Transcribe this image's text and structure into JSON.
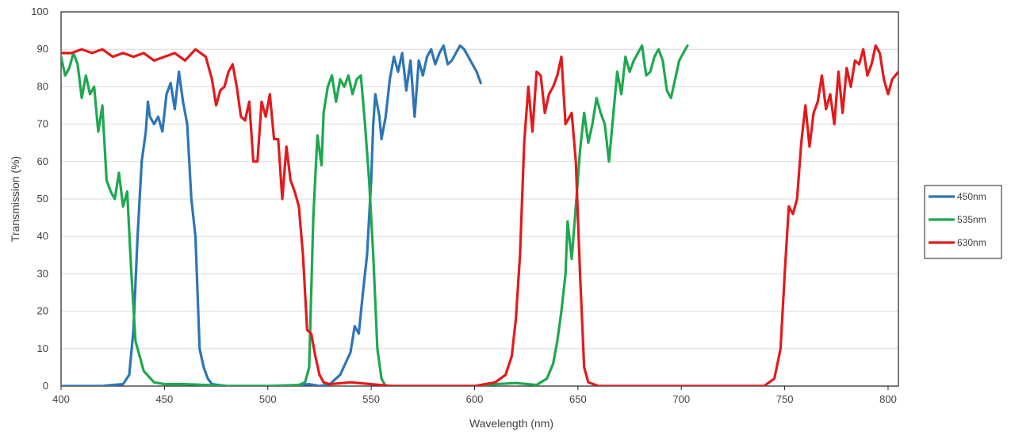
{
  "chart_data": {
    "type": "line",
    "title": "",
    "xlabel": "Wavelength (nm)",
    "ylabel": "Transmission (%)",
    "xlim": [
      400,
      805
    ],
    "ylim": [
      0,
      100
    ],
    "x_ticks": [
      400,
      450,
      500,
      550,
      600,
      650,
      700,
      750,
      800
    ],
    "y_ticks": [
      0,
      10,
      20,
      30,
      40,
      50,
      60,
      70,
      80,
      90,
      100
    ],
    "grid": "horizontal",
    "legend_position": "right",
    "series": [
      {
        "name": "450nm",
        "color": "#2e75b6",
        "points": [
          [
            400,
            0
          ],
          [
            420,
            0
          ],
          [
            425,
            0.3
          ],
          [
            430,
            0.5
          ],
          [
            433,
            3
          ],
          [
            435,
            15
          ],
          [
            437,
            40
          ],
          [
            439,
            60
          ],
          [
            441,
            68
          ],
          [
            442,
            76
          ],
          [
            443,
            72
          ],
          [
            445,
            70
          ],
          [
            447,
            72
          ],
          [
            449,
            68
          ],
          [
            451,
            78
          ],
          [
            453,
            81
          ],
          [
            455,
            74
          ],
          [
            457,
            84
          ],
          [
            459,
            76
          ],
          [
            461,
            70
          ],
          [
            463,
            50
          ],
          [
            465,
            40
          ],
          [
            467,
            10
          ],
          [
            469,
            5
          ],
          [
            471,
            2
          ],
          [
            473,
            0.5
          ],
          [
            480,
            0
          ],
          [
            510,
            0
          ],
          [
            520,
            0.5
          ],
          [
            525,
            0
          ],
          [
            530,
            0.5
          ],
          [
            535,
            3
          ],
          [
            540,
            9
          ],
          [
            542,
            16
          ],
          [
            544,
            14
          ],
          [
            546,
            25
          ],
          [
            548,
            35
          ],
          [
            550,
            55
          ],
          [
            551,
            70
          ],
          [
            552,
            78
          ],
          [
            554,
            72
          ],
          [
            555,
            66
          ],
          [
            557,
            72
          ],
          [
            559,
            82
          ],
          [
            561,
            88
          ],
          [
            563,
            84
          ],
          [
            565,
            89
          ],
          [
            567,
            79
          ],
          [
            569,
            87
          ],
          [
            571,
            72
          ],
          [
            573,
            87
          ],
          [
            575,
            83
          ],
          [
            577,
            88
          ],
          [
            579,
            90
          ],
          [
            581,
            86
          ],
          [
            583,
            89
          ],
          [
            585,
            91
          ],
          [
            587,
            86
          ],
          [
            589,
            87
          ],
          [
            591,
            89
          ],
          [
            593,
            91
          ],
          [
            595,
            90
          ],
          [
            597,
            88
          ],
          [
            599,
            86
          ],
          [
            601,
            84
          ],
          [
            603,
            81
          ]
        ]
      },
      {
        "name": "535nm",
        "color": "#1fa84f",
        "points": [
          [
            400,
            88
          ],
          [
            402,
            83
          ],
          [
            404,
            85
          ],
          [
            406,
            89
          ],
          [
            408,
            86
          ],
          [
            410,
            77
          ],
          [
            412,
            83
          ],
          [
            414,
            78
          ],
          [
            416,
            80
          ],
          [
            418,
            68
          ],
          [
            420,
            75
          ],
          [
            422,
            55
          ],
          [
            424,
            52
          ],
          [
            426,
            50
          ],
          [
            428,
            57
          ],
          [
            430,
            48
          ],
          [
            432,
            52
          ],
          [
            434,
            30
          ],
          [
            436,
            12
          ],
          [
            438,
            8
          ],
          [
            440,
            4
          ],
          [
            445,
            1
          ],
          [
            450,
            0.5
          ],
          [
            460,
            0.5
          ],
          [
            470,
            0.3
          ],
          [
            480,
            0
          ],
          [
            500,
            0
          ],
          [
            515,
            0.3
          ],
          [
            518,
            1
          ],
          [
            520,
            5
          ],
          [
            522,
            45
          ],
          [
            524,
            67
          ],
          [
            526,
            59
          ],
          [
            527,
            73
          ],
          [
            529,
            80
          ],
          [
            531,
            83
          ],
          [
            533,
            76
          ],
          [
            535,
            82
          ],
          [
            537,
            80
          ],
          [
            539,
            83
          ],
          [
            541,
            78
          ],
          [
            543,
            82
          ],
          [
            545,
            83
          ],
          [
            547,
            70
          ],
          [
            549,
            55
          ],
          [
            551,
            35
          ],
          [
            553,
            10
          ],
          [
            555,
            2
          ],
          [
            557,
            0
          ],
          [
            600,
            0
          ],
          [
            610,
            0.5
          ],
          [
            620,
            0.8
          ],
          [
            630,
            0.3
          ],
          [
            635,
            2
          ],
          [
            638,
            6
          ],
          [
            640,
            12
          ],
          [
            642,
            20
          ],
          [
            644,
            30
          ],
          [
            645,
            44
          ],
          [
            647,
            34
          ],
          [
            649,
            48
          ],
          [
            651,
            63
          ],
          [
            653,
            73
          ],
          [
            655,
            65
          ],
          [
            657,
            70
          ],
          [
            659,
            77
          ],
          [
            661,
            73
          ],
          [
            663,
            70
          ],
          [
            665,
            60
          ],
          [
            667,
            72
          ],
          [
            669,
            84
          ],
          [
            671,
            78
          ],
          [
            673,
            88
          ],
          [
            675,
            84
          ],
          [
            677,
            87
          ],
          [
            679,
            89
          ],
          [
            681,
            91
          ],
          [
            683,
            83
          ],
          [
            685,
            84
          ],
          [
            687,
            88
          ],
          [
            689,
            90
          ],
          [
            691,
            87
          ],
          [
            693,
            79
          ],
          [
            695,
            77
          ],
          [
            697,
            82
          ],
          [
            699,
            87
          ],
          [
            701,
            89
          ],
          [
            703,
            91
          ]
        ]
      },
      {
        "name": "630nm",
        "color": "#e31a1c",
        "points": [
          [
            400,
            89
          ],
          [
            405,
            89
          ],
          [
            410,
            90
          ],
          [
            415,
            89
          ],
          [
            420,
            90
          ],
          [
            425,
            88
          ],
          [
            430,
            89
          ],
          [
            435,
            88
          ],
          [
            440,
            89
          ],
          [
            445,
            87
          ],
          [
            450,
            88
          ],
          [
            455,
            89
          ],
          [
            460,
            87
          ],
          [
            465,
            90
          ],
          [
            470,
            88
          ],
          [
            473,
            82
          ],
          [
            475,
            75
          ],
          [
            477,
            79
          ],
          [
            479,
            80
          ],
          [
            481,
            84
          ],
          [
            483,
            86
          ],
          [
            485,
            80
          ],
          [
            487,
            72
          ],
          [
            489,
            71
          ],
          [
            491,
            76
          ],
          [
            493,
            60
          ],
          [
            495,
            60
          ],
          [
            497,
            76
          ],
          [
            499,
            72
          ],
          [
            501,
            78
          ],
          [
            503,
            66
          ],
          [
            505,
            66
          ],
          [
            507,
            50
          ],
          [
            509,
            64
          ],
          [
            511,
            55
          ],
          [
            513,
            52
          ],
          [
            515,
            48
          ],
          [
            517,
            35
          ],
          [
            519,
            15
          ],
          [
            521,
            14
          ],
          [
            523,
            8
          ],
          [
            525,
            3
          ],
          [
            527,
            1
          ],
          [
            530,
            0.5
          ],
          [
            540,
            1
          ],
          [
            550,
            0.5
          ],
          [
            560,
            0
          ],
          [
            600,
            0
          ],
          [
            610,
            1
          ],
          [
            615,
            3
          ],
          [
            618,
            8
          ],
          [
            620,
            18
          ],
          [
            622,
            35
          ],
          [
            624,
            65
          ],
          [
            626,
            80
          ],
          [
            628,
            68
          ],
          [
            630,
            84
          ],
          [
            632,
            83
          ],
          [
            634,
            73
          ],
          [
            636,
            78
          ],
          [
            638,
            80
          ],
          [
            640,
            83
          ],
          [
            642,
            88
          ],
          [
            644,
            70
          ],
          [
            646,
            72
          ],
          [
            647,
            73
          ],
          [
            649,
            60
          ],
          [
            651,
            30
          ],
          [
            653,
            5
          ],
          [
            655,
            1
          ],
          [
            660,
            0
          ],
          [
            740,
            0
          ],
          [
            745,
            2
          ],
          [
            748,
            10
          ],
          [
            750,
            30
          ],
          [
            752,
            48
          ],
          [
            754,
            46
          ],
          [
            756,
            50
          ],
          [
            758,
            65
          ],
          [
            760,
            75
          ],
          [
            762,
            64
          ],
          [
            764,
            73
          ],
          [
            766,
            76
          ],
          [
            768,
            83
          ],
          [
            770,
            74
          ],
          [
            772,
            78
          ],
          [
            774,
            70
          ],
          [
            776,
            84
          ],
          [
            778,
            73
          ],
          [
            780,
            85
          ],
          [
            782,
            80
          ],
          [
            784,
            87
          ],
          [
            786,
            86
          ],
          [
            788,
            90
          ],
          [
            790,
            83
          ],
          [
            792,
            86
          ],
          [
            794,
            91
          ],
          [
            796,
            89
          ],
          [
            798,
            82
          ],
          [
            800,
            78
          ],
          [
            802,
            82
          ],
          [
            805,
            84
          ]
        ]
      }
    ]
  }
}
